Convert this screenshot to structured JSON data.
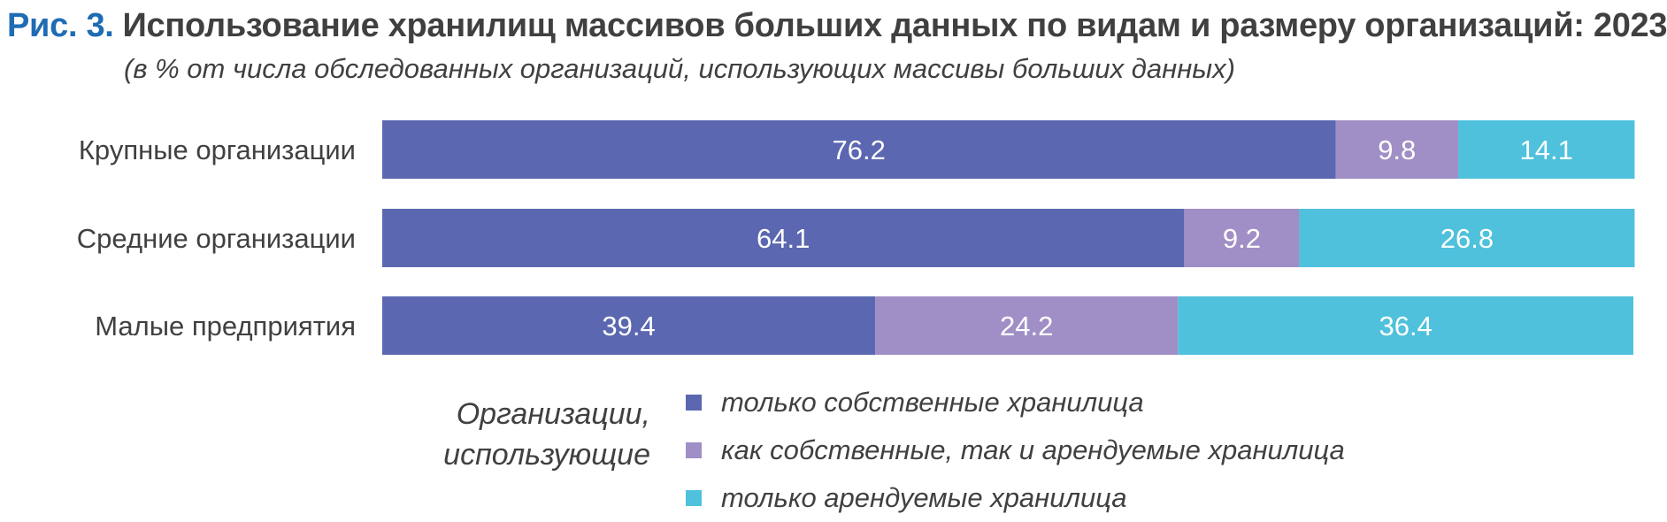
{
  "header": {
    "figure_label": "Рис. 3.",
    "title": "Использование хранилищ массивов больших данных по видам и размеру организаций: 2023",
    "subtitle": "(в % от числа обследованных организаций, использующих массивы больших данных)"
  },
  "legend": {
    "heading_line1": "Организации,",
    "heading_line2": "использующие"
  },
  "colors": {
    "own": "#5b67b0",
    "both": "#a08fc6",
    "rented": "#4fc1dc",
    "label": "#404040",
    "figure_label": "#1f6cb4"
  },
  "chart_data": {
    "type": "bar",
    "orientation": "horizontal",
    "stacked": true,
    "xlim": [
      0,
      100
    ],
    "categories": [
      "Крупные организации",
      "Средние организации",
      "Малые предприятия"
    ],
    "series": [
      {
        "name": "только собственные хранилица",
        "values": [
          76.2,
          64.1,
          39.4
        ]
      },
      {
        "name": "как собственные, так и арендуемые хранилица",
        "values": [
          9.8,
          9.2,
          24.2
        ]
      },
      {
        "name": "только арендуемые хранилица",
        "values": [
          14.1,
          26.8,
          36.4
        ]
      }
    ],
    "grid": false,
    "legend_position": "bottom"
  }
}
